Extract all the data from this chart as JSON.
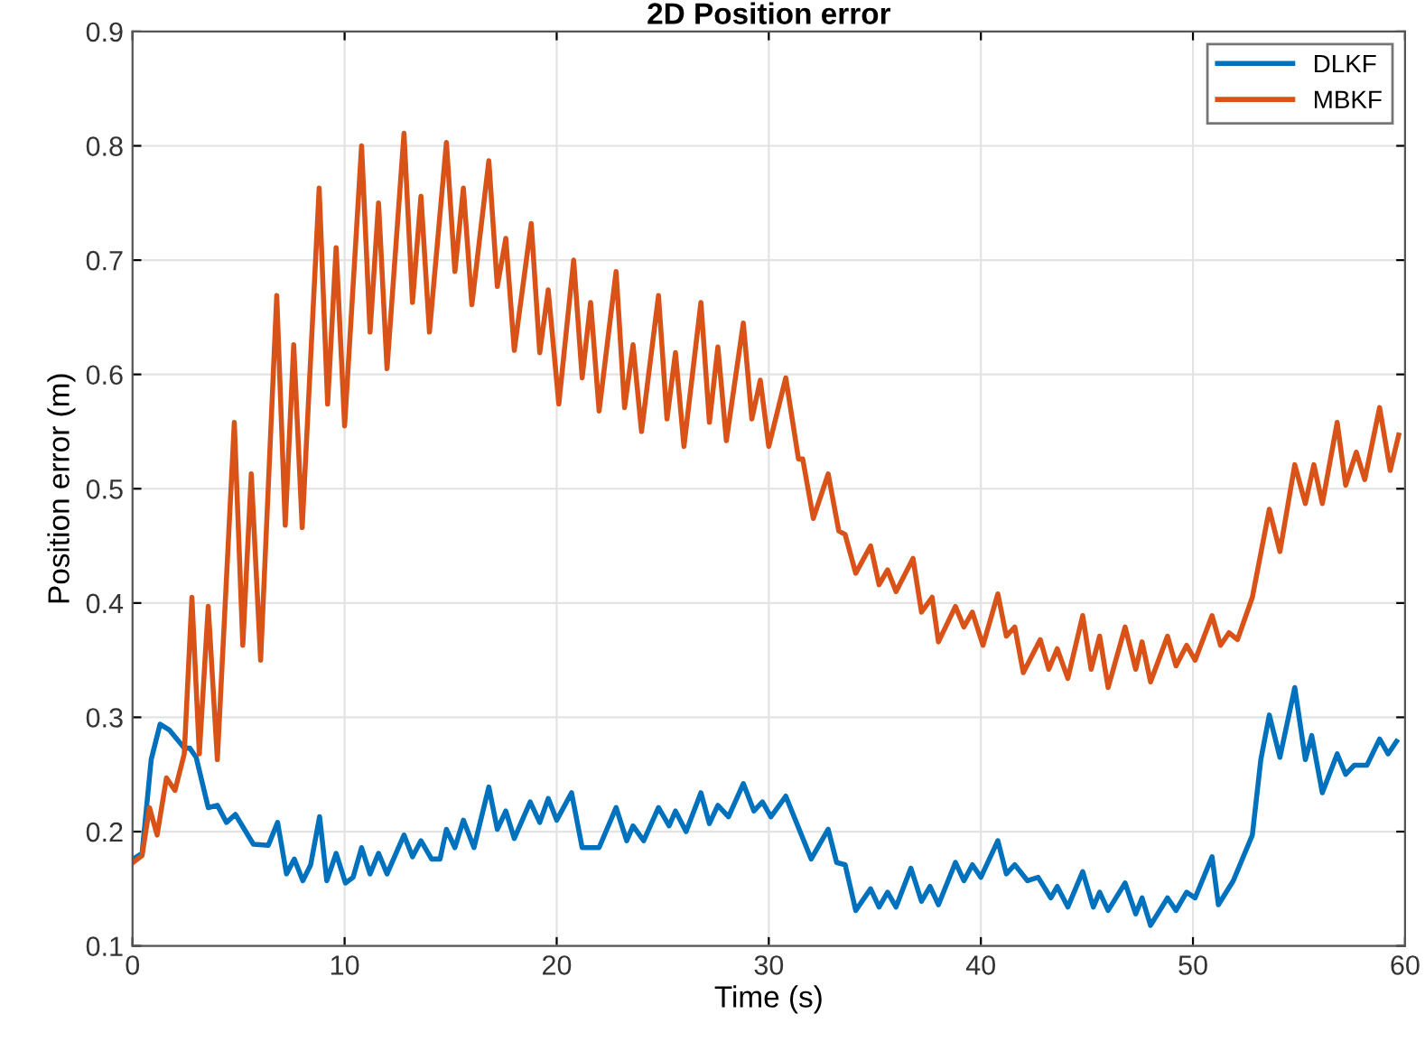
{
  "chart_data": {
    "type": "line",
    "title": "2D Position error",
    "xlabel": "Time (s)",
    "ylabel": "Position error (m)",
    "xlim": [
      0,
      60
    ],
    "ylim": [
      0.1,
      0.9
    ],
    "xticks": [
      0,
      10,
      20,
      30,
      40,
      50,
      60
    ],
    "yticks": [
      0.1,
      0.2,
      0.3,
      0.4,
      0.5,
      0.6,
      0.7,
      0.8,
      0.9
    ],
    "grid": true,
    "legend": "top right",
    "line_style": "solid",
    "marker": "none",
    "series": [
      {
        "name": "DLKF",
        "color": "#0072bd",
        "x": [
          0.03,
          0.45,
          0.88,
          1.3,
          1.73,
          2.44,
          2.7,
          3.0,
          3.57,
          4.0,
          4.43,
          4.85,
          5.7,
          6.4,
          6.84,
          7.26,
          7.63,
          8.03,
          8.4,
          8.82,
          9.16,
          9.6,
          10.04,
          10.4,
          10.8,
          11.2,
          11.6,
          12.0,
          12.8,
          13.2,
          13.6,
          14.1,
          14.5,
          14.8,
          15.2,
          15.6,
          16.1,
          16.8,
          17.2,
          17.6,
          18.0,
          18.75,
          19.2,
          19.6,
          20.0,
          20.7,
          21.2,
          22.0,
          22.8,
          23.3,
          23.6,
          24.1,
          24.8,
          25.3,
          25.6,
          26.1,
          26.8,
          27.2,
          27.6,
          28.1,
          28.8,
          29.3,
          29.7,
          30.1,
          30.8,
          32.0,
          32.8,
          33.2,
          33.6,
          34.1,
          34.8,
          35.2,
          35.6,
          36.0,
          36.7,
          37.2,
          37.6,
          38.0,
          38.8,
          39.2,
          39.6,
          40.0,
          40.8,
          41.2,
          41.6,
          42.2,
          42.7,
          43.3,
          43.6,
          44.1,
          44.8,
          45.3,
          45.6,
          46.0,
          46.8,
          47.3,
          47.6,
          48.0,
          48.8,
          49.2,
          49.7,
          50.1,
          50.9,
          51.2,
          51.9,
          52.8,
          53.2,
          53.6,
          54.1,
          54.8,
          55.3,
          55.6,
          56.1,
          56.8,
          57.2,
          57.6,
          58.2,
          58.8,
          59.2,
          59.6
        ],
        "values": [
          0.176,
          0.181,
          0.263,
          0.294,
          0.289,
          0.273,
          0.273,
          0.265,
          0.221,
          0.223,
          0.208,
          0.215,
          0.189,
          0.188,
          0.208,
          0.163,
          0.176,
          0.157,
          0.171,
          0.213,
          0.157,
          0.181,
          0.155,
          0.16,
          0.186,
          0.163,
          0.181,
          0.163,
          0.197,
          0.178,
          0.192,
          0.176,
          0.176,
          0.202,
          0.186,
          0.21,
          0.186,
          0.239,
          0.202,
          0.218,
          0.194,
          0.226,
          0.208,
          0.229,
          0.21,
          0.234,
          0.186,
          0.186,
          0.221,
          0.192,
          0.205,
          0.192,
          0.221,
          0.205,
          0.218,
          0.2,
          0.234,
          0.207,
          0.223,
          0.213,
          0.242,
          0.218,
          0.226,
          0.213,
          0.231,
          0.176,
          0.202,
          0.173,
          0.171,
          0.131,
          0.15,
          0.134,
          0.147,
          0.134,
          0.168,
          0.139,
          0.152,
          0.136,
          0.173,
          0.157,
          0.171,
          0.16,
          0.192,
          0.163,
          0.171,
          0.157,
          0.16,
          0.142,
          0.152,
          0.134,
          0.165,
          0.134,
          0.147,
          0.131,
          0.155,
          0.128,
          0.142,
          0.118,
          0.142,
          0.131,
          0.147,
          0.142,
          0.178,
          0.136,
          0.157,
          0.197,
          0.263,
          0.302,
          0.265,
          0.326,
          0.263,
          0.284,
          0.234,
          0.268,
          0.25,
          0.258,
          0.258,
          0.281,
          0.268,
          0.279
        ]
      },
      {
        "name": "MBKF",
        "color": "#d95319",
        "x": [
          0.03,
          0.45,
          0.8,
          1.16,
          1.6,
          2.0,
          2.44,
          2.8,
          3.15,
          3.57,
          4.0,
          4.8,
          5.2,
          5.6,
          6.04,
          6.8,
          7.2,
          7.6,
          8.0,
          8.8,
          9.2,
          9.6,
          10.0,
          10.8,
          11.2,
          11.6,
          12.0,
          12.8,
          13.2,
          13.6,
          14.0,
          14.8,
          15.2,
          15.6,
          16.0,
          16.8,
          17.2,
          17.6,
          18.0,
          18.8,
          19.2,
          19.6,
          20.1,
          20.8,
          21.2,
          21.6,
          22.0,
          22.8,
          23.2,
          23.6,
          24.0,
          24.8,
          25.2,
          25.6,
          26.0,
          26.8,
          27.2,
          27.6,
          28.0,
          28.8,
          29.2,
          29.6,
          30.0,
          30.8,
          31.4,
          31.6,
          32.1,
          32.8,
          33.3,
          33.6,
          34.1,
          34.8,
          35.2,
          35.6,
          36.0,
          36.8,
          37.2,
          37.7,
          38.0,
          38.8,
          39.2,
          39.6,
          40.1,
          40.8,
          41.2,
          41.6,
          42.0,
          42.8,
          43.2,
          43.6,
          44.1,
          44.8,
          45.2,
          45.6,
          46.0,
          46.8,
          47.3,
          47.6,
          48.0,
          48.8,
          49.2,
          49.7,
          50.1,
          50.9,
          51.3,
          51.7,
          52.1,
          52.8,
          53.6,
          54.1,
          54.8,
          55.3,
          55.7,
          56.1,
          56.8,
          57.2,
          57.7,
          58.1,
          58.8,
          59.3,
          59.7
        ],
        "values": [
          0.173,
          0.179,
          0.221,
          0.197,
          0.247,
          0.236,
          0.268,
          0.405,
          0.268,
          0.397,
          0.263,
          0.558,
          0.363,
          0.513,
          0.35,
          0.669,
          0.468,
          0.626,
          0.466,
          0.763,
          0.574,
          0.711,
          0.555,
          0.8,
          0.637,
          0.75,
          0.605,
          0.811,
          0.663,
          0.756,
          0.637,
          0.803,
          0.69,
          0.763,
          0.661,
          0.787,
          0.677,
          0.719,
          0.621,
          0.732,
          0.619,
          0.674,
          0.574,
          0.7,
          0.597,
          0.663,
          0.568,
          0.69,
          0.571,
          0.626,
          0.55,
          0.669,
          0.561,
          0.619,
          0.537,
          0.663,
          0.558,
          0.624,
          0.542,
          0.645,
          0.561,
          0.595,
          0.537,
          0.597,
          0.526,
          0.526,
          0.474,
          0.513,
          0.463,
          0.46,
          0.426,
          0.45,
          0.416,
          0.429,
          0.41,
          0.439,
          0.392,
          0.405,
          0.366,
          0.397,
          0.379,
          0.392,
          0.363,
          0.408,
          0.371,
          0.379,
          0.339,
          0.368,
          0.342,
          0.36,
          0.334,
          0.389,
          0.342,
          0.371,
          0.326,
          0.379,
          0.342,
          0.366,
          0.331,
          0.371,
          0.345,
          0.363,
          0.35,
          0.389,
          0.363,
          0.374,
          0.368,
          0.405,
          0.482,
          0.445,
          0.521,
          0.487,
          0.521,
          0.487,
          0.558,
          0.503,
          0.532,
          0.508,
          0.571,
          0.516,
          0.547
        ]
      }
    ]
  }
}
